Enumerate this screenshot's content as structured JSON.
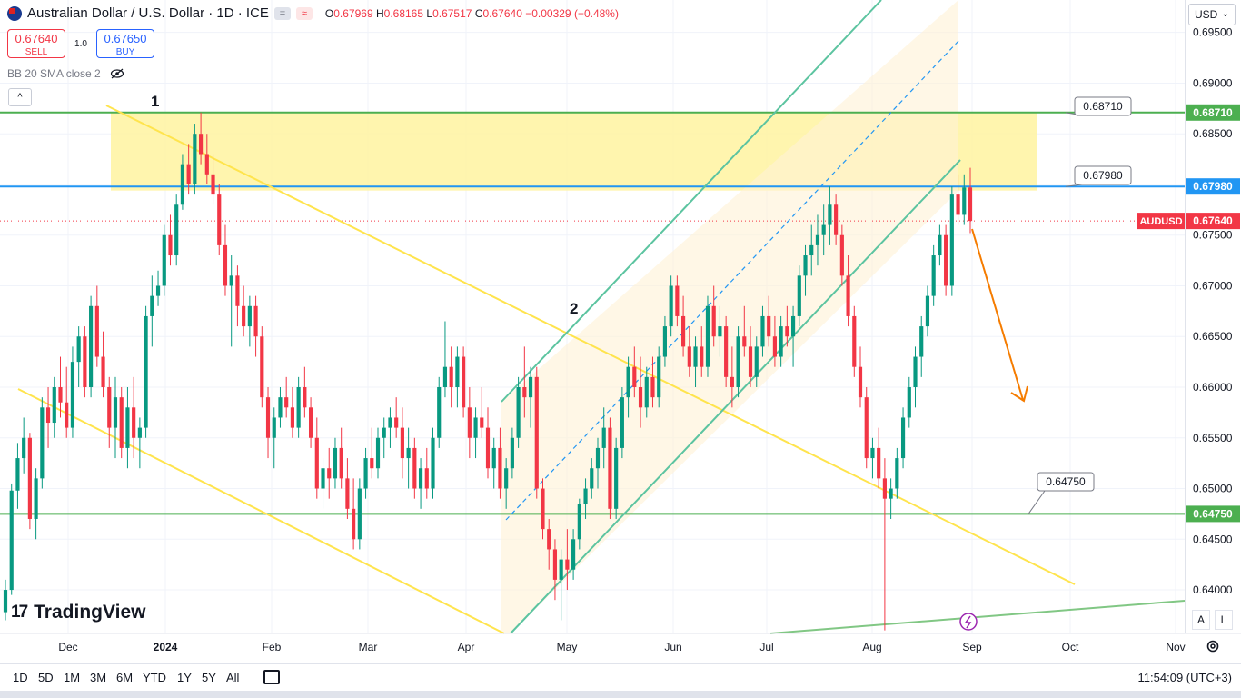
{
  "header": {
    "symbol_title": "Australian Dollar / U.S. Dollar · 1D · ICE",
    "ohlc": {
      "o_label": "O",
      "o": "0.67969",
      "h_label": "H",
      "h": "0.68165",
      "l_label": "L",
      "l": "0.67517",
      "c_label": "C",
      "c": "0.67640",
      "change": "−0.00329 (−0.48%)"
    },
    "mini_btn_1": "=",
    "mini_btn_2": "≈"
  },
  "trade": {
    "sell_price": "0.67640",
    "sell_label": "SELL",
    "spread": "1.0",
    "buy_price": "0.67650",
    "buy_label": "BUY"
  },
  "indicator": {
    "label": "BB 20 SMA close 2"
  },
  "collapse_label": "^",
  "currency": "USD",
  "brand": {
    "logo": "17",
    "name": "TradingView"
  },
  "axis_buttons": {
    "auto": "A",
    "log": "L"
  },
  "bottom": {
    "periods": [
      "1D",
      "5D",
      "1M",
      "3M",
      "6M",
      "YTD",
      "1Y",
      "5Y",
      "All"
    ],
    "time": "11:54:09 (UTC+3)"
  },
  "colors": {
    "up": "#089981",
    "down": "#f23645",
    "accent": "#2962ff",
    "support_green": "#4caf50",
    "resistance_blue": "#2196f3",
    "channel": "#5cc4a0",
    "wedge": "#ffeb3b",
    "arrow": "#f57c00"
  },
  "chart_data": {
    "type": "candlestick",
    "symbol": "AUDUSD",
    "current_price": 0.6764,
    "y_ticks": [
      0.64,
      0.645,
      0.65,
      0.655,
      0.66,
      0.665,
      0.67,
      0.675,
      0.68,
      0.685,
      0.69,
      0.695
    ],
    "y_tick_labels": [
      "0.64000",
      "0.64500",
      "0.65000",
      "0.65500",
      "0.66000",
      "0.66500",
      "0.67000",
      "0.67500",
      "0.68000",
      "0.68500",
      "0.69000",
      "0.69500"
    ],
    "ylim": [
      0.6357,
      0.6982
    ],
    "x_tick_labels": [
      "Dec",
      "2024",
      "Feb",
      "Mar",
      "Apr",
      "May",
      "Jun",
      "Jul",
      "Aug",
      "Sep",
      "Oct",
      "Nov"
    ],
    "levels": [
      {
        "price": 0.6871,
        "label": "0.68710",
        "color": "#4caf50"
      },
      {
        "price": 0.6798,
        "label": "0.67980",
        "color": "#2196f3"
      },
      {
        "price": 0.6475,
        "label": "0.64750",
        "color": "#4caf50"
      }
    ],
    "current_tag": {
      "label": "AUDUSD",
      "value": "0.67640"
    },
    "annotations": [
      "1",
      "2"
    ],
    "candles": [
      [
        0.6378,
        0.641,
        0.637,
        0.64
      ],
      [
        0.64,
        0.6505,
        0.6395,
        0.6498
      ],
      [
        0.6498,
        0.6545,
        0.648,
        0.653
      ],
      [
        0.653,
        0.657,
        0.6515,
        0.655
      ],
      [
        0.655,
        0.6555,
        0.646,
        0.647
      ],
      [
        0.647,
        0.652,
        0.645,
        0.651
      ],
      [
        0.651,
        0.659,
        0.65,
        0.658
      ],
      [
        0.658,
        0.66,
        0.654,
        0.6565
      ],
      [
        0.6565,
        0.661,
        0.655,
        0.66
      ],
      [
        0.66,
        0.663,
        0.657,
        0.6585
      ],
      [
        0.6585,
        0.662,
        0.655,
        0.656
      ],
      [
        0.656,
        0.664,
        0.655,
        0.6625
      ],
      [
        0.6625,
        0.666,
        0.66,
        0.665
      ],
      [
        0.665,
        0.666,
        0.659,
        0.66
      ],
      [
        0.66,
        0.669,
        0.659,
        0.668
      ],
      [
        0.668,
        0.67,
        0.662,
        0.663
      ],
      [
        0.663,
        0.6655,
        0.659,
        0.66
      ],
      [
        0.66,
        0.661,
        0.654,
        0.656
      ],
      [
        0.656,
        0.661,
        0.653,
        0.659
      ],
      [
        0.659,
        0.66,
        0.653,
        0.654
      ],
      [
        0.654,
        0.66,
        0.652,
        0.658
      ],
      [
        0.658,
        0.661,
        0.653,
        0.655
      ],
      [
        0.655,
        0.657,
        0.652,
        0.656
      ],
      [
        0.656,
        0.668,
        0.655,
        0.667
      ],
      [
        0.667,
        0.671,
        0.664,
        0.669
      ],
      [
        0.669,
        0.6715,
        0.668,
        0.67
      ],
      [
        0.67,
        0.676,
        0.669,
        0.675
      ],
      [
        0.675,
        0.677,
        0.672,
        0.673
      ],
      [
        0.673,
        0.679,
        0.672,
        0.678
      ],
      [
        0.678,
        0.683,
        0.6775,
        0.682
      ],
      [
        0.682,
        0.684,
        0.679,
        0.68
      ],
      [
        0.68,
        0.686,
        0.679,
        0.685
      ],
      [
        0.685,
        0.6871,
        0.682,
        0.683
      ],
      [
        0.683,
        0.685,
        0.68,
        0.681
      ],
      [
        0.681,
        0.683,
        0.678,
        0.679
      ],
      [
        0.679,
        0.68,
        0.673,
        0.674
      ],
      [
        0.674,
        0.676,
        0.669,
        0.67
      ],
      [
        0.67,
        0.673,
        0.664,
        0.671
      ],
      [
        0.671,
        0.672,
        0.666,
        0.668
      ],
      [
        0.668,
        0.67,
        0.665,
        0.666
      ],
      [
        0.666,
        0.669,
        0.664,
        0.668
      ],
      [
        0.668,
        0.669,
        0.663,
        0.665
      ],
      [
        0.665,
        0.666,
        0.658,
        0.659
      ],
      [
        0.659,
        0.66,
        0.653,
        0.655
      ],
      [
        0.655,
        0.658,
        0.652,
        0.657
      ],
      [
        0.657,
        0.66,
        0.656,
        0.659
      ],
      [
        0.659,
        0.661,
        0.657,
        0.658
      ],
      [
        0.658,
        0.66,
        0.655,
        0.656
      ],
      [
        0.656,
        0.661,
        0.655,
        0.66
      ],
      [
        0.66,
        0.662,
        0.657,
        0.658
      ],
      [
        0.658,
        0.659,
        0.654,
        0.655
      ],
      [
        0.655,
        0.657,
        0.649,
        0.65
      ],
      [
        0.65,
        0.653,
        0.648,
        0.652
      ],
      [
        0.652,
        0.654,
        0.649,
        0.651
      ],
      [
        0.651,
        0.655,
        0.65,
        0.654
      ],
      [
        0.654,
        0.656,
        0.65,
        0.651
      ],
      [
        0.651,
        0.653,
        0.647,
        0.648
      ],
      [
        0.648,
        0.651,
        0.644,
        0.645
      ],
      [
        0.645,
        0.651,
        0.644,
        0.65
      ],
      [
        0.65,
        0.654,
        0.649,
        0.653
      ],
      [
        0.653,
        0.656,
        0.651,
        0.652
      ],
      [
        0.652,
        0.656,
        0.651,
        0.655
      ],
      [
        0.655,
        0.657,
        0.653,
        0.656
      ],
      [
        0.656,
        0.658,
        0.654,
        0.657
      ],
      [
        0.657,
        0.659,
        0.655,
        0.656
      ],
      [
        0.656,
        0.658,
        0.651,
        0.653
      ],
      [
        0.653,
        0.656,
        0.65,
        0.654
      ],
      [
        0.654,
        0.655,
        0.649,
        0.65
      ],
      [
        0.65,
        0.653,
        0.648,
        0.652
      ],
      [
        0.652,
        0.654,
        0.649,
        0.65
      ],
      [
        0.65,
        0.656,
        0.649,
        0.655
      ],
      [
        0.655,
        0.661,
        0.654,
        0.66
      ],
      [
        0.66,
        0.6665,
        0.659,
        0.662
      ],
      [
        0.662,
        0.664,
        0.658,
        0.66
      ],
      [
        0.66,
        0.664,
        0.658,
        0.663
      ],
      [
        0.663,
        0.664,
        0.657,
        0.658
      ],
      [
        0.658,
        0.66,
        0.653,
        0.655
      ],
      [
        0.655,
        0.658,
        0.653,
        0.657
      ],
      [
        0.657,
        0.66,
        0.655,
        0.656
      ],
      [
        0.656,
        0.658,
        0.651,
        0.652
      ],
      [
        0.652,
        0.655,
        0.65,
        0.654
      ],
      [
        0.654,
        0.656,
        0.649,
        0.65
      ],
      [
        0.65,
        0.653,
        0.648,
        0.652
      ],
      [
        0.652,
        0.656,
        0.651,
        0.655
      ],
      [
        0.655,
        0.661,
        0.654,
        0.66
      ],
      [
        0.66,
        0.664,
        0.657,
        0.659
      ],
      [
        0.659,
        0.662,
        0.656,
        0.661
      ],
      [
        0.661,
        0.662,
        0.649,
        0.65
      ],
      [
        0.65,
        0.651,
        0.645,
        0.646
      ],
      [
        0.646,
        0.647,
        0.642,
        0.644
      ],
      [
        0.644,
        0.645,
        0.639,
        0.641
      ],
      [
        0.641,
        0.644,
        0.637,
        0.643
      ],
      [
        0.643,
        0.646,
        0.64,
        0.642
      ],
      [
        0.642,
        0.646,
        0.641,
        0.645
      ],
      [
        0.645,
        0.649,
        0.644,
        0.6485
      ],
      [
        0.6485,
        0.651,
        0.647,
        0.65
      ],
      [
        0.65,
        0.653,
        0.649,
        0.652
      ],
      [
        0.652,
        0.655,
        0.65,
        0.654
      ],
      [
        0.654,
        0.658,
        0.652,
        0.656
      ],
      [
        0.656,
        0.657,
        0.647,
        0.648
      ],
      [
        0.648,
        0.655,
        0.647,
        0.654
      ],
      [
        0.654,
        0.66,
        0.653,
        0.659
      ],
      [
        0.659,
        0.663,
        0.657,
        0.662
      ],
      [
        0.662,
        0.664,
        0.659,
        0.66
      ],
      [
        0.66,
        0.663,
        0.656,
        0.658
      ],
      [
        0.658,
        0.662,
        0.657,
        0.661
      ],
      [
        0.661,
        0.663,
        0.658,
        0.659
      ],
      [
        0.659,
        0.664,
        0.658,
        0.663
      ],
      [
        0.663,
        0.667,
        0.662,
        0.666
      ],
      [
        0.666,
        0.671,
        0.665,
        0.67
      ],
      [
        0.67,
        0.671,
        0.666,
        0.667
      ],
      [
        0.667,
        0.669,
        0.663,
        0.664
      ],
      [
        0.664,
        0.666,
        0.661,
        0.662
      ],
      [
        0.662,
        0.665,
        0.66,
        0.664
      ],
      [
        0.664,
        0.666,
        0.661,
        0.662
      ],
      [
        0.662,
        0.669,
        0.661,
        0.668
      ],
      [
        0.668,
        0.67,
        0.664,
        0.665
      ],
      [
        0.665,
        0.668,
        0.663,
        0.666
      ],
      [
        0.666,
        0.667,
        0.66,
        0.661
      ],
      [
        0.661,
        0.664,
        0.658,
        0.66
      ],
      [
        0.66,
        0.666,
        0.659,
        0.665
      ],
      [
        0.665,
        0.668,
        0.663,
        0.664
      ],
      [
        0.664,
        0.666,
        0.66,
        0.661
      ],
      [
        0.661,
        0.665,
        0.66,
        0.664
      ],
      [
        0.664,
        0.668,
        0.663,
        0.667
      ],
      [
        0.667,
        0.669,
        0.664,
        0.665
      ],
      [
        0.665,
        0.667,
        0.662,
        0.663
      ],
      [
        0.663,
        0.667,
        0.662,
        0.666
      ],
      [
        0.666,
        0.668,
        0.664,
        0.665
      ],
      [
        0.665,
        0.668,
        0.662,
        0.667
      ],
      [
        0.667,
        0.672,
        0.666,
        0.671
      ],
      [
        0.671,
        0.674,
        0.669,
        0.673
      ],
      [
        0.673,
        0.676,
        0.671,
        0.674
      ],
      [
        0.674,
        0.677,
        0.672,
        0.675
      ],
      [
        0.675,
        0.678,
        0.673,
        0.676
      ],
      [
        0.676,
        0.6798,
        0.674,
        0.678
      ],
      [
        0.678,
        0.679,
        0.674,
        0.675
      ],
      [
        0.675,
        0.676,
        0.67,
        0.671
      ],
      [
        0.671,
        0.673,
        0.666,
        0.667
      ],
      [
        0.667,
        0.668,
        0.661,
        0.662
      ],
      [
        0.662,
        0.664,
        0.658,
        0.659
      ],
      [
        0.659,
        0.66,
        0.652,
        0.653
      ],
      [
        0.653,
        0.655,
        0.651,
        0.654
      ],
      [
        0.654,
        0.656,
        0.65,
        0.651
      ],
      [
        0.651,
        0.653,
        0.636,
        0.649
      ],
      [
        0.649,
        0.651,
        0.647,
        0.65
      ],
      [
        0.65,
        0.654,
        0.649,
        0.653
      ],
      [
        0.653,
        0.658,
        0.652,
        0.657
      ],
      [
        0.657,
        0.661,
        0.656,
        0.66
      ],
      [
        0.66,
        0.664,
        0.658,
        0.663
      ],
      [
        0.663,
        0.667,
        0.661,
        0.666
      ],
      [
        0.666,
        0.67,
        0.665,
        0.669
      ],
      [
        0.669,
        0.674,
        0.668,
        0.673
      ],
      [
        0.673,
        0.676,
        0.672,
        0.675
      ],
      [
        0.675,
        0.676,
        0.669,
        0.67
      ],
      [
        0.67,
        0.6798,
        0.669,
        0.679
      ],
      [
        0.679,
        0.681,
        0.676,
        0.677
      ],
      [
        0.677,
        0.681,
        0.676,
        0.6797
      ],
      [
        0.6797,
        0.68165,
        0.6752,
        0.6764
      ]
    ]
  }
}
